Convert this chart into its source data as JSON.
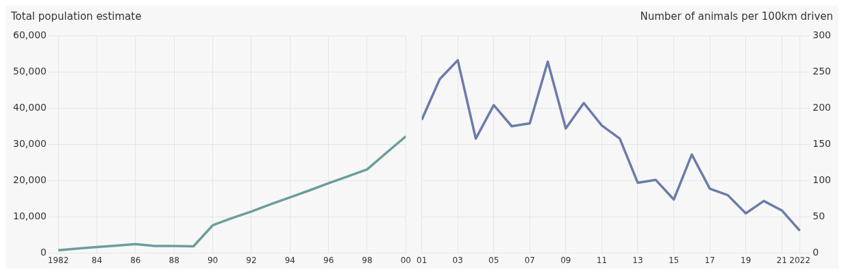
{
  "chart_data": [
    {
      "type": "line",
      "ylabel": "Total population estimate",
      "x": [
        1982,
        1983,
        1984,
        1985,
        1986,
        1987,
        1988,
        1989,
        1990,
        1991,
        1992,
        1993,
        1994,
        1995,
        1996,
        1997,
        1998,
        1999,
        2000
      ],
      "series": [
        {
          "color": "#6a9e9b",
          "values": [
            800,
            1300,
            1700,
            2100,
            2500,
            2000,
            2000,
            1900,
            7700,
            9700,
            11500,
            13500,
            15400,
            17300,
            19300,
            21200,
            23100,
            27700,
            32200
          ]
        }
      ],
      "xlim": [
        1981.5,
        2000
      ],
      "xticks": [
        {
          "value": 1982,
          "label": "1982"
        },
        {
          "value": 1984,
          "label": "84"
        },
        {
          "value": 1986,
          "label": "86"
        },
        {
          "value": 1988,
          "label": "88"
        },
        {
          "value": 1990,
          "label": "90"
        },
        {
          "value": 1992,
          "label": "92"
        },
        {
          "value": 1994,
          "label": "94"
        },
        {
          "value": 1996,
          "label": "96"
        },
        {
          "value": 1998,
          "label": "98"
        },
        {
          "value": 2000,
          "label": "00"
        }
      ],
      "ylim": [
        0,
        60000
      ],
      "yticks": [
        0,
        {
          "value": 10000,
          "label": "10,000"
        },
        {
          "value": 20000,
          "label": "20,000"
        },
        {
          "value": 30000,
          "label": "30,000"
        },
        {
          "value": 40000,
          "label": "40,000"
        },
        {
          "value": 50000,
          "label": "50,000"
        },
        {
          "value": 60000,
          "label": "60,000"
        }
      ],
      "grid": true,
      "legend": false
    },
    {
      "type": "line",
      "y2label": "Number of animals per 100km driven",
      "x": [
        2001,
        2002,
        2003,
        2004,
        2005,
        2006,
        2007,
        2008,
        2009,
        2010,
        2011,
        2012,
        2013,
        2014,
        2015,
        2016,
        2017,
        2018,
        2019,
        2020,
        2021,
        2022
      ],
      "series": [
        {
          "color": "#6b7bab",
          "axis": "y2",
          "values": [
            184,
            240,
            266,
            158,
            204,
            175,
            179,
            264,
            172,
            207,
            176,
            158,
            97,
            101,
            74,
            136,
            89,
            80,
            55,
            72,
            59,
            31
          ]
        }
      ],
      "xlim": [
        2001,
        2022.6
      ],
      "xticks": [
        {
          "value": 2001,
          "label": "01"
        },
        {
          "value": 2003,
          "label": "03"
        },
        {
          "value": 2005,
          "label": "05"
        },
        {
          "value": 2007,
          "label": "07"
        },
        {
          "value": 2009,
          "label": "09"
        },
        {
          "value": 2011,
          "label": "11"
        },
        {
          "value": 2013,
          "label": "13"
        },
        {
          "value": 2015,
          "label": "15"
        },
        {
          "value": 2017,
          "label": "17"
        },
        {
          "value": 2019,
          "label": "19"
        },
        {
          "value": 2021,
          "label": "21"
        },
        {
          "value": 2022,
          "label": "2022"
        }
      ],
      "y2lim": [
        0,
        300
      ],
      "y2ticks": [
        0,
        50,
        100,
        150,
        200,
        250,
        300
      ],
      "grid": true,
      "legend": false
    }
  ]
}
